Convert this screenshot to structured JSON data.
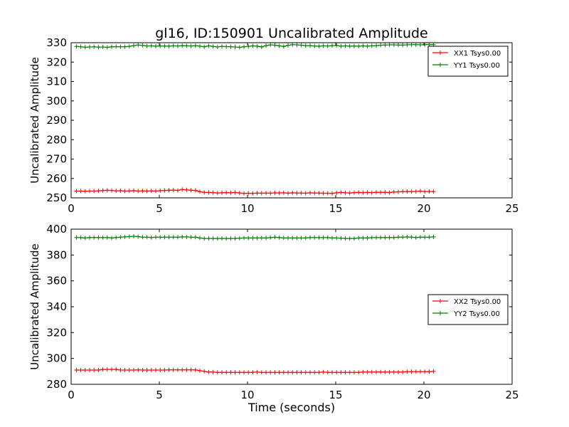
{
  "figure": {
    "title": "gl16, ID:150901 Uncalibrated Amplitude",
    "xlabel": "Time (seconds)"
  },
  "chart_data": [
    {
      "type": "line",
      "ylabel": "Uncalibrated Amplitude",
      "xlim": [
        0,
        25
      ],
      "ylim": [
        250,
        330
      ],
      "xticks": [
        0,
        5,
        10,
        15,
        20,
        25
      ],
      "yticks": [
        250,
        260,
        270,
        280,
        290,
        300,
        310,
        320,
        330
      ],
      "legend_position": "top-right",
      "grid": false,
      "x_start": 0.3,
      "x_step": 0.25,
      "series": [
        {
          "name": "XX1 Tsys0.00",
          "color": "#ff0000",
          "values": [
            253.5,
            253.5,
            253.4,
            253.5,
            253.5,
            253.6,
            253.8,
            253.9,
            253.8,
            253.6,
            253.7,
            253.5,
            253.6,
            253.7,
            253.5,
            253.6,
            253.5,
            253.6,
            253.5,
            253.7,
            253.8,
            253.9,
            254.0,
            253.8,
            254.3,
            254.1,
            253.9,
            253.8,
            253.2,
            252.8,
            252.8,
            252.7,
            252.5,
            252.6,
            252.7,
            252.6,
            252.8,
            252.5,
            252.3,
            252.4,
            252.3,
            252.5,
            252.4,
            252.5,
            252.4,
            252.6,
            252.5,
            252.6,
            252.4,
            252.6,
            252.5,
            252.5,
            252.4,
            252.6,
            252.5,
            252.5,
            252.4,
            252.4,
            252.3,
            252.6,
            252.8,
            252.6,
            252.5,
            252.7,
            252.8,
            252.7,
            252.8,
            252.7,
            252.9,
            252.8,
            252.9,
            252.7,
            253.0,
            253.1,
            253.2,
            253.3,
            253.2,
            253.3,
            253.5,
            253.2,
            253.3,
            253.2
          ]
        },
        {
          "name": "YY1 Tsys0.00",
          "color": "#007f00",
          "values": [
            328.1,
            327.9,
            327.7,
            327.8,
            327.9,
            327.7,
            327.8,
            327.6,
            327.9,
            328.0,
            327.9,
            327.9,
            328.1,
            328.5,
            328.8,
            328.6,
            328.3,
            328.4,
            328.2,
            328.3,
            328.3,
            328.2,
            328.4,
            328.3,
            328.5,
            328.4,
            328.3,
            328.5,
            328.2,
            327.9,
            328.4,
            328.1,
            327.8,
            328.1,
            328.0,
            327.9,
            327.8,
            327.6,
            327.9,
            328.1,
            328.4,
            328.2,
            327.8,
            328.5,
            328.9,
            328.7,
            328.4,
            328.1,
            328.6,
            329.0,
            328.9,
            328.7,
            328.5,
            328.5,
            328.3,
            328.2,
            328.4,
            328.3,
            328.5,
            328.6,
            328.2,
            328.4,
            328.2,
            328.3,
            328.2,
            328.4,
            328.2,
            328.4,
            328.5,
            328.7,
            328.8,
            328.9,
            328.9,
            328.8,
            328.8,
            328.9,
            329.0,
            329.0,
            328.9,
            329.0,
            329.1,
            329.0
          ]
        }
      ]
    },
    {
      "type": "line",
      "ylabel": "Uncalibrated Amplitude",
      "xlim": [
        0,
        25
      ],
      "ylim": [
        280,
        400
      ],
      "xticks": [
        0,
        5,
        10,
        15,
        20,
        25
      ],
      "yticks": [
        280,
        300,
        320,
        340,
        360,
        380,
        400
      ],
      "legend_position": "center-right",
      "grid": false,
      "x_start": 0.3,
      "x_step": 0.25,
      "series": [
        {
          "name": "XX2 Tsys0.00",
          "color": "#ff0000",
          "values": [
            291,
            291,
            291,
            291,
            291,
            291,
            291.5,
            291.5,
            291.5,
            291.5,
            291,
            291,
            291,
            291,
            291.2,
            291,
            291,
            291,
            291,
            291,
            291,
            291.2,
            291.2,
            291.2,
            291.2,
            291.2,
            291.2,
            291.2,
            290.5,
            290,
            289.5,
            289.5,
            289.2,
            289.2,
            289.2,
            289.2,
            289.2,
            289.2,
            289.2,
            289.2,
            289.2,
            289.5,
            289.2,
            289.2,
            289.2,
            289.2,
            289.2,
            289.2,
            289.2,
            289.2,
            289.2,
            289.2,
            289.2,
            289.2,
            289.2,
            289.2,
            289.5,
            289.2,
            289.2,
            289.2,
            289.2,
            289.2,
            289.2,
            289.2,
            289.2,
            289.5,
            289.5,
            289.5,
            289.5,
            289.5,
            289.5,
            289.5,
            289.5,
            289.5,
            289.5,
            289.8,
            289.8,
            289.8,
            289.8,
            289.8,
            289.8,
            290
          ]
        },
        {
          "name": "YY2 Tsys0.00",
          "color": "#007f00",
          "values": [
            393.5,
            393.5,
            393.2,
            393.5,
            393.5,
            393.5,
            393.5,
            393.5,
            393.2,
            393.5,
            393.8,
            394,
            394.2,
            394.5,
            394.2,
            393.8,
            393.8,
            393.5,
            393.8,
            393.8,
            393.8,
            393.8,
            393.8,
            393.8,
            394,
            394,
            393.8,
            393.8,
            393.2,
            392.8,
            392.8,
            392.8,
            392.8,
            392.8,
            392.8,
            392.8,
            392.8,
            393,
            393.2,
            393.2,
            393.2,
            393.2,
            393.2,
            393.2,
            393.5,
            393.8,
            393.5,
            393.2,
            393.2,
            393.2,
            393.2,
            393.2,
            393.2,
            393.5,
            393.5,
            393.5,
            393.5,
            393.5,
            393.2,
            393.2,
            393,
            392.8,
            392.8,
            392.8,
            393.2,
            393.2,
            393.2,
            393.5,
            393.5,
            393.5,
            393.5,
            393.5,
            393.5,
            393.8,
            393.8,
            394,
            393.8,
            393.5,
            393.8,
            393.8,
            393.8,
            394
          ]
        }
      ]
    }
  ]
}
